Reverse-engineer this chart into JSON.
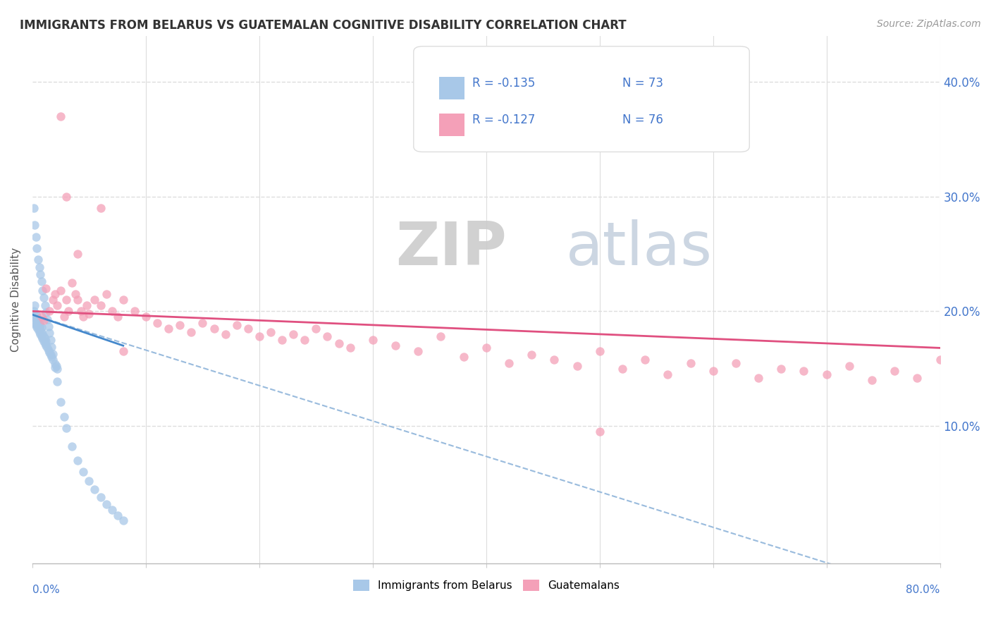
{
  "title": "IMMIGRANTS FROM BELARUS VS GUATEMALAN COGNITIVE DISABILITY CORRELATION CHART",
  "source_text": "Source: ZipAtlas.com",
  "ylabel": "Cognitive Disability",
  "yticks": [
    0.0,
    0.1,
    0.2,
    0.3,
    0.4
  ],
  "ytick_labels": [
    "",
    "10.0%",
    "20.0%",
    "30.0%",
    "40.0%"
  ],
  "xlim": [
    0.0,
    0.8
  ],
  "ylim": [
    -0.02,
    0.44
  ],
  "legend_label1": "Immigrants from Belarus",
  "legend_label2": "Guatemalans",
  "color_blue": "#a8c8e8",
  "color_pink": "#f4a0b8",
  "color_blue_line": "#4488cc",
  "color_pink_line": "#e05080",
  "color_dashed": "#99bbdd",
  "background_color": "#ffffff",
  "grid_color": "#dddddd",
  "blue_points_x": [
    0.001,
    0.001,
    0.002,
    0.002,
    0.002,
    0.003,
    0.003,
    0.003,
    0.004,
    0.004,
    0.004,
    0.005,
    0.005,
    0.005,
    0.006,
    0.006,
    0.006,
    0.007,
    0.007,
    0.007,
    0.008,
    0.008,
    0.008,
    0.009,
    0.009,
    0.01,
    0.01,
    0.011,
    0.011,
    0.012,
    0.012,
    0.013,
    0.014,
    0.015,
    0.016,
    0.017,
    0.018,
    0.02,
    0.021,
    0.022,
    0.001,
    0.002,
    0.003,
    0.004,
    0.005,
    0.006,
    0.007,
    0.008,
    0.009,
    0.01,
    0.011,
    0.012,
    0.013,
    0.014,
    0.015,
    0.016,
    0.017,
    0.018,
    0.02,
    0.022,
    0.025,
    0.028,
    0.03,
    0.035,
    0.04,
    0.045,
    0.05,
    0.055,
    0.06,
    0.065,
    0.07,
    0.075,
    0.08
  ],
  "blue_points_y": [
    0.195,
    0.2,
    0.19,
    0.195,
    0.205,
    0.188,
    0.193,
    0.198,
    0.186,
    0.19,
    0.195,
    0.184,
    0.188,
    0.192,
    0.182,
    0.186,
    0.19,
    0.18,
    0.184,
    0.188,
    0.178,
    0.182,
    0.186,
    0.176,
    0.18,
    0.174,
    0.178,
    0.172,
    0.176,
    0.17,
    0.174,
    0.168,
    0.166,
    0.164,
    0.162,
    0.16,
    0.158,
    0.154,
    0.152,
    0.15,
    0.29,
    0.275,
    0.265,
    0.255,
    0.245,
    0.238,
    0.232,
    0.226,
    0.218,
    0.212,
    0.205,
    0.199,
    0.193,
    0.187,
    0.181,
    0.175,
    0.169,
    0.163,
    0.151,
    0.139,
    0.121,
    0.108,
    0.098,
    0.082,
    0.07,
    0.06,
    0.052,
    0.045,
    0.038,
    0.032,
    0.027,
    0.022,
    0.018
  ],
  "pink_points_x": [
    0.008,
    0.01,
    0.012,
    0.015,
    0.018,
    0.02,
    0.022,
    0.025,
    0.028,
    0.03,
    0.032,
    0.035,
    0.038,
    0.04,
    0.043,
    0.045,
    0.048,
    0.05,
    0.055,
    0.06,
    0.065,
    0.07,
    0.075,
    0.08,
    0.09,
    0.1,
    0.11,
    0.12,
    0.13,
    0.14,
    0.15,
    0.16,
    0.17,
    0.18,
    0.19,
    0.2,
    0.21,
    0.22,
    0.23,
    0.24,
    0.25,
    0.26,
    0.27,
    0.28,
    0.3,
    0.32,
    0.34,
    0.36,
    0.38,
    0.4,
    0.42,
    0.44,
    0.46,
    0.48,
    0.5,
    0.52,
    0.54,
    0.56,
    0.58,
    0.6,
    0.62,
    0.64,
    0.66,
    0.68,
    0.7,
    0.72,
    0.74,
    0.76,
    0.78,
    0.8,
    0.025,
    0.03,
    0.04,
    0.06,
    0.08,
    0.5
  ],
  "pink_points_y": [
    0.195,
    0.192,
    0.22,
    0.2,
    0.21,
    0.215,
    0.205,
    0.218,
    0.195,
    0.21,
    0.2,
    0.225,
    0.215,
    0.21,
    0.2,
    0.195,
    0.205,
    0.198,
    0.21,
    0.205,
    0.215,
    0.2,
    0.195,
    0.21,
    0.2,
    0.195,
    0.19,
    0.185,
    0.188,
    0.182,
    0.19,
    0.185,
    0.18,
    0.188,
    0.185,
    0.178,
    0.182,
    0.175,
    0.18,
    0.175,
    0.185,
    0.178,
    0.172,
    0.168,
    0.175,
    0.17,
    0.165,
    0.178,
    0.16,
    0.168,
    0.155,
    0.162,
    0.158,
    0.152,
    0.165,
    0.15,
    0.158,
    0.145,
    0.155,
    0.148,
    0.155,
    0.142,
    0.15,
    0.148,
    0.145,
    0.152,
    0.14,
    0.148,
    0.142,
    0.158,
    0.37,
    0.3,
    0.25,
    0.29,
    0.165,
    0.095
  ],
  "blue_line_x": [
    0.0,
    0.08
  ],
  "blue_line_y": [
    0.197,
    0.17
  ],
  "pink_line_x": [
    0.0,
    0.8
  ],
  "pink_line_y": [
    0.2,
    0.168
  ],
  "dashed_line_x": [
    0.0,
    0.8
  ],
  "dashed_line_y": [
    0.197,
    -0.05
  ]
}
